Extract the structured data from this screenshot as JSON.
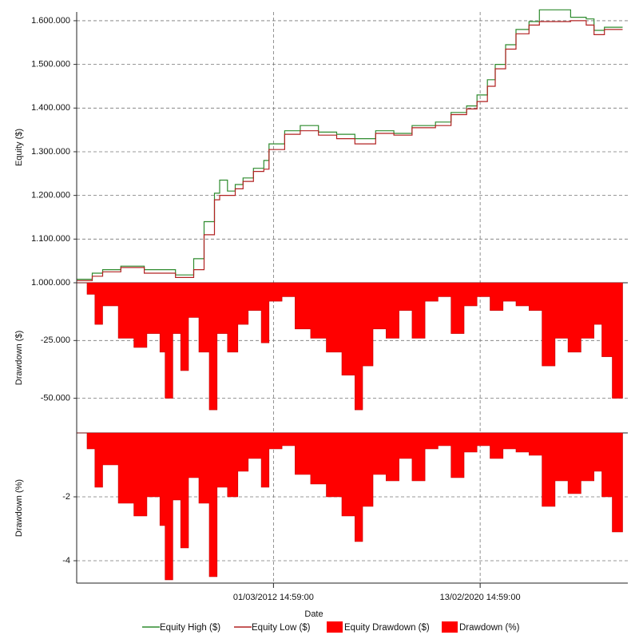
{
  "chart_data": [
    {
      "type": "line",
      "ylabel": "Equity ($)",
      "ylim": [
        1000000,
        1620000
      ],
      "yticks": [
        1000000,
        1100000,
        1200000,
        1300000,
        1400000,
        1500000,
        1600000
      ],
      "ytick_labels": [
        "1.000.000",
        "1.100.000",
        "1.200.000",
        "1.300.000",
        "1.400.000",
        "1.500.000",
        "1.600.000"
      ],
      "grid": true,
      "series": [
        {
          "name": "Equity High ($)",
          "color": "#2e8b2e",
          "x": [
            2004.6,
            2005.2,
            2005.6,
            2006.3,
            2007.2,
            2008.4,
            2009.1,
            2009.5,
            2009.9,
            2010.1,
            2010.4,
            2010.7,
            2011.0,
            2011.4,
            2011.8,
            2012.0,
            2012.6,
            2013.2,
            2013.9,
            2014.6,
            2015.3,
            2016.1,
            2016.8,
            2017.5,
            2018.4,
            2019.0,
            2019.6,
            2020.0,
            2020.4,
            2020.7,
            2021.1,
            2021.5,
            2022.0,
            2022.4,
            2023.6,
            2024.2,
            2024.5,
            2024.9,
            2025.6
          ],
          "values": [
            1008000,
            1022000,
            1030000,
            1038000,
            1030000,
            1018000,
            1055000,
            1140000,
            1205000,
            1235000,
            1210000,
            1225000,
            1240000,
            1262000,
            1280000,
            1318000,
            1348000,
            1360000,
            1345000,
            1340000,
            1330000,
            1348000,
            1342000,
            1360000,
            1368000,
            1390000,
            1405000,
            1430000,
            1465000,
            1500000,
            1545000,
            1580000,
            1598000,
            1625000,
            1608000,
            1604000,
            1578000,
            1585000,
            1585000
          ]
        },
        {
          "name": "Equity Low ($)",
          "color": "#b22222",
          "x": [
            2004.6,
            2005.2,
            2005.6,
            2006.3,
            2007.2,
            2008.4,
            2009.1,
            2009.5,
            2009.9,
            2010.1,
            2010.4,
            2010.7,
            2011.0,
            2011.4,
            2011.8,
            2012.0,
            2012.6,
            2013.2,
            2013.9,
            2014.6,
            2015.3,
            2016.1,
            2016.8,
            2017.5,
            2018.4,
            2019.0,
            2019.6,
            2020.0,
            2020.4,
            2020.7,
            2021.1,
            2021.5,
            2022.0,
            2022.4,
            2023.6,
            2024.2,
            2024.5,
            2024.9,
            2025.6
          ],
          "values": [
            1005000,
            1015000,
            1025000,
            1035000,
            1022000,
            1012000,
            1030000,
            1110000,
            1190000,
            1200000,
            1200000,
            1215000,
            1232000,
            1255000,
            1260000,
            1305000,
            1340000,
            1348000,
            1338000,
            1330000,
            1318000,
            1342000,
            1338000,
            1355000,
            1360000,
            1385000,
            1398000,
            1415000,
            1450000,
            1490000,
            1535000,
            1570000,
            1590000,
            1598000,
            1600000,
            1590000,
            1568000,
            1580000,
            1580000
          ]
        }
      ]
    },
    {
      "type": "area",
      "ylabel": "Drawdown ($)",
      "ylim": [
        -65000,
        0
      ],
      "yticks": [
        -25000,
        -50000
      ],
      "ytick_labels": [
        "-25.000",
        "-50.000"
      ],
      "grid": true,
      "series": [
        {
          "name": "Equity Drawdown ($)",
          "color": "#ff0000",
          "x": [
            2004.6,
            2005.0,
            2005.3,
            2005.6,
            2006.2,
            2006.8,
            2007.3,
            2007.8,
            2008.0,
            2008.3,
            2008.6,
            2008.9,
            2009.3,
            2009.7,
            2010.0,
            2010.4,
            2010.8,
            2011.2,
            2011.7,
            2012.0,
            2012.5,
            2013.0,
            2013.6,
            2014.2,
            2014.8,
            2015.3,
            2015.6,
            2016.0,
            2016.5,
            2017.0,
            2017.5,
            2018.0,
            2018.5,
            2019.0,
            2019.5,
            2020.0,
            2020.5,
            2021.0,
            2021.5,
            2022.0,
            2022.5,
            2023.0,
            2023.5,
            2024.0,
            2024.5,
            2024.8,
            2025.2,
            2025.6
          ],
          "values": [
            0,
            -5000,
            -18000,
            -10000,
            -24000,
            -28000,
            -22000,
            -30000,
            -50000,
            -22000,
            -38000,
            -15000,
            -30000,
            -55000,
            -22000,
            -30000,
            -18000,
            -12000,
            -26000,
            -8000,
            -6000,
            -20000,
            -24000,
            -30000,
            -40000,
            -55000,
            -36000,
            -20000,
            -24000,
            -12000,
            -24000,
            -8000,
            -6000,
            -22000,
            -10000,
            -6000,
            -12000,
            -8000,
            -10000,
            -12000,
            -36000,
            -24000,
            -30000,
            -24000,
            -18000,
            -32000,
            -50000,
            -42000
          ]
        }
      ]
    },
    {
      "type": "area",
      "xlabel": "Date",
      "ylabel": "Drawdown (%)",
      "ylim": [
        -4.7,
        0
      ],
      "yticks": [
        -2,
        -4
      ],
      "ytick_labels": [
        "-2",
        "-4"
      ],
      "xticks": [
        "01/03/2012 14:59:00",
        "13/02/2020 14:59:00"
      ],
      "grid": true,
      "series": [
        {
          "name": "Drawdown (%)",
          "color": "#ff0000",
          "x": [
            2004.6,
            2005.0,
            2005.3,
            2005.6,
            2006.2,
            2006.8,
            2007.3,
            2007.8,
            2008.0,
            2008.3,
            2008.6,
            2008.9,
            2009.3,
            2009.7,
            2010.0,
            2010.4,
            2010.8,
            2011.2,
            2011.7,
            2012.0,
            2012.5,
            2013.0,
            2013.6,
            2014.2,
            2014.8,
            2015.3,
            2015.6,
            2016.0,
            2016.5,
            2017.0,
            2017.5,
            2018.0,
            2018.5,
            2019.0,
            2019.5,
            2020.0,
            2020.5,
            2021.0,
            2021.5,
            2022.0,
            2022.5,
            2023.0,
            2023.5,
            2024.0,
            2024.5,
            2024.8,
            2025.2,
            2025.6
          ],
          "values": [
            0,
            -0.5,
            -1.7,
            -1.0,
            -2.2,
            -2.6,
            -2.0,
            -2.9,
            -4.6,
            -2.1,
            -3.6,
            -1.4,
            -2.2,
            -4.5,
            -1.7,
            -2.0,
            -1.2,
            -0.8,
            -1.7,
            -0.5,
            -0.4,
            -1.3,
            -1.6,
            -2.0,
            -2.6,
            -3.4,
            -2.3,
            -1.3,
            -1.5,
            -0.8,
            -1.5,
            -0.5,
            -0.4,
            -1.4,
            -0.6,
            -0.4,
            -0.8,
            -0.5,
            -0.6,
            -0.7,
            -2.3,
            -1.5,
            -1.9,
            -1.5,
            -1.2,
            -2.0,
            -3.1,
            -2.6
          ]
        }
      ]
    }
  ],
  "x_axis": {
    "label": "Date",
    "min": 2004.6,
    "max": 2025.8,
    "ticks": [
      {
        "value": 2012.17,
        "label": "01/03/2012 14:59:00"
      },
      {
        "value": 2020.12,
        "label": "13/02/2020 14:59:00"
      }
    ]
  },
  "legend": {
    "placement": "bottom",
    "items": [
      {
        "label": "Equity High ($)",
        "kind": "line",
        "color": "#2e8b2e"
      },
      {
        "label": "Equity Low ($)",
        "kind": "line",
        "color": "#b22222"
      },
      {
        "label": "Equity Drawdown ($)",
        "kind": "box",
        "color": "#ff0000"
      },
      {
        "label": "Drawdown (%)",
        "kind": "box",
        "color": "#ff0000"
      }
    ]
  }
}
